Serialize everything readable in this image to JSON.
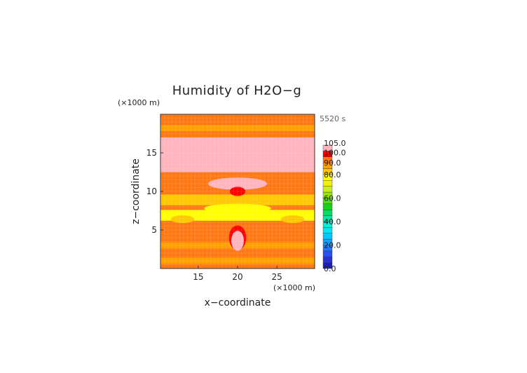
{
  "chart_data": {
    "type": "heatmap",
    "title": "Humidity of H2O−g",
    "time_label": "5520 s",
    "xlabel": "x−coordinate",
    "ylabel": "z−coordinate",
    "x_unit": "(×1000 m)",
    "y_unit": "(×1000 m)",
    "xlim": [
      10.2,
      29.8
    ],
    "ylim": [
      0,
      20
    ],
    "x_ticks": [
      15,
      20,
      25
    ],
    "y_ticks": [
      5,
      10,
      15
    ],
    "colorbar": {
      "levels": [
        {
          "from": 0,
          "to": 5,
          "color": "#1e1eb4"
        },
        {
          "from": 5,
          "to": 10,
          "color": "#2832d2"
        },
        {
          "from": 10,
          "to": 15,
          "color": "#2850f0"
        },
        {
          "from": 15,
          "to": 20,
          "color": "#1e78ff"
        },
        {
          "from": 20,
          "to": 25,
          "color": "#14a0ff"
        },
        {
          "from": 25,
          "to": 30,
          "color": "#00c8ff"
        },
        {
          "from": 30,
          "to": 35,
          "color": "#00e6f0"
        },
        {
          "from": 35,
          "to": 40,
          "color": "#00f0d2"
        },
        {
          "from": 40,
          "to": 45,
          "color": "#00e6a0"
        },
        {
          "from": 45,
          "to": 50,
          "color": "#00dc64"
        },
        {
          "from": 50,
          "to": 55,
          "color": "#14d21e"
        },
        {
          "from": 55,
          "to": 60,
          "color": "#50dc14"
        },
        {
          "from": 60,
          "to": 65,
          "color": "#96e614"
        },
        {
          "from": 65,
          "to": 70,
          "color": "#c8f014"
        },
        {
          "from": 70,
          "to": 75,
          "color": "#f0f000"
        },
        {
          "from": 75,
          "to": 80,
          "color": "#ffff00"
        },
        {
          "from": 80,
          "to": 85,
          "color": "#ffc800"
        },
        {
          "from": 85,
          "to": 90,
          "color": "#ffa000"
        },
        {
          "from": 90,
          "to": 95,
          "color": "#ff7814"
        },
        {
          "from": 95,
          "to": 100,
          "color": "#ff0000"
        },
        {
          "from": 100,
          "to": 105,
          "color": "#ffb4be"
        }
      ],
      "tick_labels": [
        "0.0",
        "20.0",
        "40.0",
        "60.0",
        "80.0",
        "90.0",
        "100.0",
        "105.0"
      ],
      "tick_values": [
        0,
        20,
        40,
        60,
        80,
        90,
        100,
        105
      ]
    },
    "background_value": 92,
    "regions": [
      {
        "shape": "band",
        "y": [
          15.5,
          17
        ],
        "value": 102
      },
      {
        "shape": "band",
        "y": [
          12.5,
          15.5
        ],
        "value": 102
      },
      {
        "shape": "band",
        "y": [
          17.8,
          18.6
        ],
        "value": 88
      },
      {
        "shape": "band",
        "y": [
          19.2,
          20
        ],
        "value": 94
      },
      {
        "shape": "band",
        "y": [
          8.2,
          9.6
        ],
        "value": 80
      },
      {
        "shape": "band",
        "y": [
          6.2,
          7.6
        ],
        "value": 78
      },
      {
        "shape": "band",
        "y": [
          2.6,
          3.4
        ],
        "value": 88
      },
      {
        "shape": "band",
        "y": [
          0.6,
          1.4
        ],
        "value": 86
      },
      {
        "shape": "blob",
        "center": [
          20,
          11.0
        ],
        "size": [
          7.5,
          1.6
        ],
        "value": 102
      },
      {
        "shape": "blob",
        "center": [
          20,
          10.0
        ],
        "size": [
          2.0,
          1.2
        ],
        "value": 97
      },
      {
        "shape": "blob",
        "center": [
          20,
          4.0
        ],
        "size": [
          2.2,
          3.2
        ],
        "value": 97
      },
      {
        "shape": "blob",
        "center": [
          20,
          3.6
        ],
        "size": [
          1.6,
          2.6
        ],
        "value": 102
      },
      {
        "shape": "blob",
        "center": [
          20,
          7.8
        ],
        "size": [
          8.5,
          1.2
        ],
        "value": 79
      },
      {
        "shape": "blob",
        "center": [
          13.0,
          6.4
        ],
        "size": [
          3.0,
          1.0
        ],
        "value": 80
      },
      {
        "shape": "blob",
        "center": [
          27.0,
          6.4
        ],
        "size": [
          3.0,
          1.0
        ],
        "value": 80
      }
    ]
  }
}
